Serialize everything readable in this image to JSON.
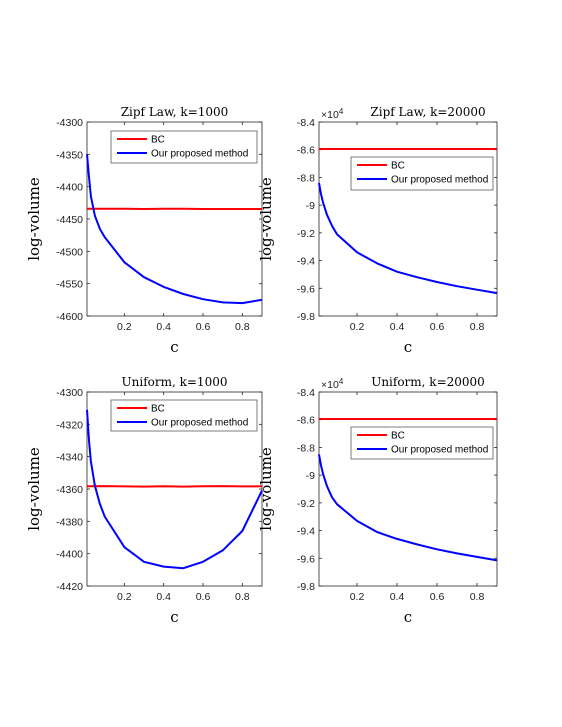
{
  "chart_data": [
    {
      "type": "line",
      "title": "Zipf Law, k=1000",
      "xlabel": "c",
      "ylabel": "log-volume",
      "xlim": [
        0.01,
        0.9
      ],
      "ylim": [
        -4600,
        -4300
      ],
      "xticks": [
        0.2,
        0.4,
        0.6,
        0.8
      ],
      "yticks": [
        -4600,
        -4550,
        -4500,
        -4450,
        -4400,
        -4350,
        -4300
      ],
      "ytick_labels": [
        "-4600",
        "-4550",
        "-4500",
        "-4450",
        "-4400",
        "-4350",
        "-4300"
      ],
      "multiplier": "",
      "legend": "top-right",
      "series": [
        {
          "name": "BC",
          "color": "#ff0000",
          "x": [
            0.01,
            0.1,
            0.2,
            0.3,
            0.4,
            0.5,
            0.6,
            0.7,
            0.8,
            0.9
          ],
          "y": [
            -4434,
            -4434,
            -4434,
            -4434.5,
            -4434,
            -4434,
            -4434.5,
            -4434.5,
            -4434.5,
            -4434.5
          ]
        },
        {
          "name": "Our proposed method",
          "color": "#0000ff",
          "x": [
            0.01,
            0.02,
            0.03,
            0.05,
            0.075,
            0.1,
            0.2,
            0.3,
            0.4,
            0.5,
            0.6,
            0.7,
            0.8,
            0.9
          ],
          "y": [
            -4350,
            -4385,
            -4415,
            -4445,
            -4465,
            -4478,
            -4517,
            -4540,
            -4555,
            -4566,
            -4574,
            -4579,
            -4580,
            -4575
          ]
        }
      ]
    },
    {
      "type": "line",
      "title": "Zipf Law, k=20000",
      "xlabel": "c",
      "ylabel": "log-volume",
      "xlim": [
        0.01,
        0.9
      ],
      "ylim": [
        -9.8,
        -8.4
      ],
      "xticks": [
        0.2,
        0.4,
        0.6,
        0.8
      ],
      "yticks": [
        -9.8,
        -9.6,
        -9.4,
        -9.2,
        -9.0,
        -8.8,
        -8.6,
        -8.4
      ],
      "ytick_labels": [
        "-9.8",
        "-9.6",
        "-9.4",
        "-9.2",
        "-9",
        "-8.8",
        "-8.6",
        "-8.4"
      ],
      "multiplier": "×10^4",
      "legend": "top-right",
      "series": [
        {
          "name": "BC",
          "color": "#ff0000",
          "x": [
            0.01,
            0.9
          ],
          "y": [
            -8.595,
            -8.595
          ]
        },
        {
          "name": "Our proposed method",
          "color": "#0000ff",
          "x": [
            0.01,
            0.02,
            0.03,
            0.05,
            0.075,
            0.1,
            0.2,
            0.3,
            0.4,
            0.5,
            0.6,
            0.7,
            0.8,
            0.9
          ],
          "y": [
            -8.84,
            -8.92,
            -8.98,
            -9.07,
            -9.15,
            -9.21,
            -9.34,
            -9.42,
            -9.48,
            -9.52,
            -9.555,
            -9.585,
            -9.61,
            -9.635
          ]
        }
      ]
    },
    {
      "type": "line",
      "title": "Uniform, k=1000",
      "xlabel": "c",
      "ylabel": "log-volume",
      "xlim": [
        0.01,
        0.9
      ],
      "ylim": [
        -4420,
        -4300
      ],
      "xticks": [
        0.2,
        0.4,
        0.6,
        0.8
      ],
      "yticks": [
        -4420,
        -4400,
        -4380,
        -4360,
        -4340,
        -4320,
        -4300
      ],
      "ytick_labels": [
        "-4420",
        "-4400",
        "-4380",
        "-4360",
        "-4340",
        "-4320",
        "-4300"
      ],
      "multiplier": "",
      "legend": "top-right",
      "series": [
        {
          "name": "BC",
          "color": "#ff0000",
          "x": [
            0.01,
            0.1,
            0.2,
            0.3,
            0.4,
            0.5,
            0.6,
            0.7,
            0.8,
            0.9
          ],
          "y": [
            -4358.3,
            -4358.2,
            -4358.4,
            -4358.5,
            -4358.3,
            -4358.5,
            -4358.3,
            -4358.2,
            -4358.4,
            -4358.3
          ]
        },
        {
          "name": "Our proposed method",
          "color": "#0000ff",
          "x": [
            0.01,
            0.02,
            0.03,
            0.05,
            0.075,
            0.1,
            0.2,
            0.3,
            0.4,
            0.5,
            0.6,
            0.7,
            0.8,
            0.9
          ],
          "y": [
            -4311,
            -4330,
            -4343,
            -4358,
            -4369,
            -4377,
            -4396,
            -4405,
            -4408,
            -4409,
            -4405,
            -4398,
            -4386,
            -4361
          ]
        }
      ]
    },
    {
      "type": "line",
      "title": "Uniform, k=20000",
      "xlabel": "c",
      "ylabel": "log-volume",
      "xlim": [
        0.01,
        0.9
      ],
      "ylim": [
        -9.8,
        -8.4
      ],
      "xticks": [
        0.2,
        0.4,
        0.6,
        0.8
      ],
      "yticks": [
        -9.8,
        -9.6,
        -9.4,
        -9.2,
        -9.0,
        -8.8,
        -8.6,
        -8.4
      ],
      "ytick_labels": [
        "-9.8",
        "-9.6",
        "-9.4",
        "-9.2",
        "-9",
        "-8.8",
        "-8.6",
        "-8.4"
      ],
      "multiplier": "×10^4",
      "legend": "top-right",
      "series": [
        {
          "name": "BC",
          "color": "#ff0000",
          "x": [
            0.01,
            0.9
          ],
          "y": [
            -8.595,
            -8.595
          ]
        },
        {
          "name": "Our proposed method",
          "color": "#0000ff",
          "x": [
            0.01,
            0.02,
            0.03,
            0.05,
            0.075,
            0.1,
            0.2,
            0.3,
            0.4,
            0.5,
            0.6,
            0.7,
            0.8,
            0.9
          ],
          "y": [
            -8.85,
            -8.93,
            -8.99,
            -9.08,
            -9.16,
            -9.21,
            -9.33,
            -9.41,
            -9.46,
            -9.5,
            -9.535,
            -9.565,
            -9.59,
            -9.615
          ]
        }
      ]
    }
  ]
}
